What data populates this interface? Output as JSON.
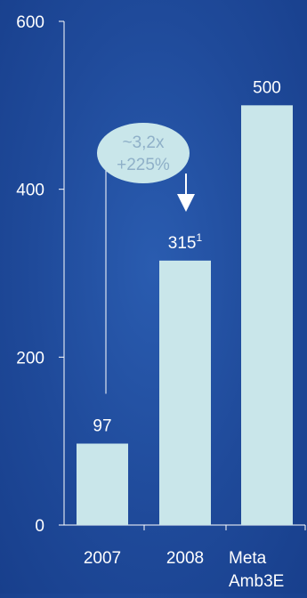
{
  "chart_data": {
    "type": "bar",
    "categories": [
      [
        "2007"
      ],
      [
        "2008"
      ],
      [
        "Meta",
        "Amb3E"
      ]
    ],
    "values": [
      97,
      315,
      500
    ],
    "data_labels": [
      {
        "text": "97",
        "sup": ""
      },
      {
        "text": "315",
        "sup": "1"
      },
      {
        "text": "500",
        "sup": ""
      }
    ],
    "y_ticks": [
      0,
      200,
      400,
      600
    ],
    "ylim": [
      0,
      600
    ],
    "annotation": {
      "lines": [
        "~3,2x",
        "+225%"
      ],
      "from_category": 0,
      "to_category": 1
    },
    "colors": {
      "bar": "#c9e6ea",
      "background": "#1f4a9a",
      "text": "#ffffff",
      "annotation_fill": "#c9e6ea",
      "annotation_text": "#8fb0c8"
    }
  }
}
